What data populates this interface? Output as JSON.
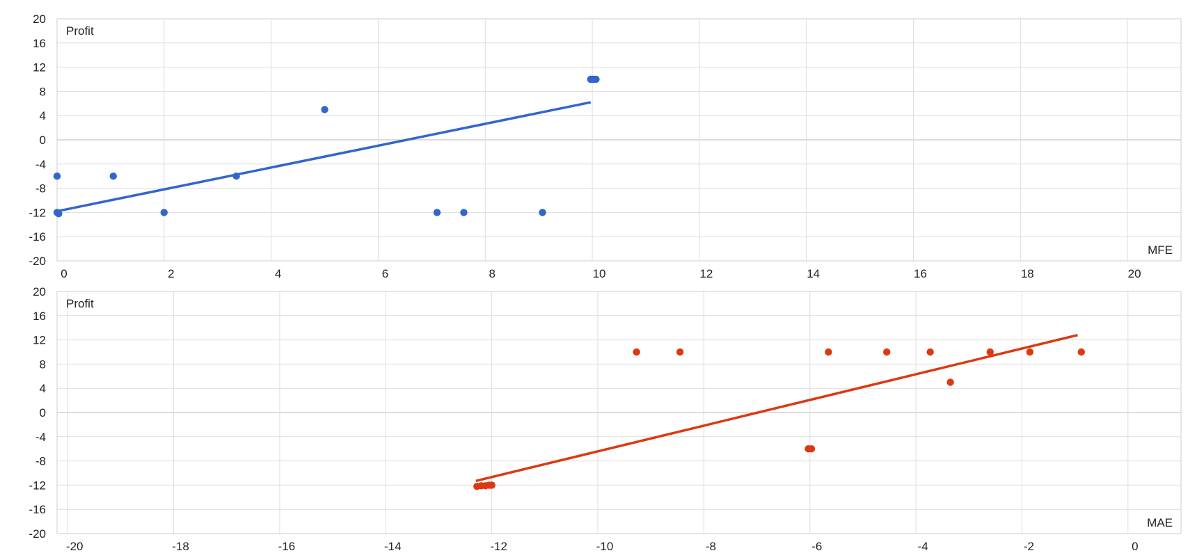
{
  "chart_data": [
    {
      "type": "scatter",
      "title": "",
      "xlabel": "MFE",
      "ylabel": "Profit",
      "xlim": [
        0,
        21
      ],
      "ylim": [
        -20,
        20
      ],
      "x_ticks": [
        0,
        2,
        4,
        6,
        8,
        10,
        12,
        14,
        16,
        18,
        20
      ],
      "y_ticks": [
        20,
        16,
        12,
        8,
        4,
        0,
        -4,
        -8,
        -12,
        -16,
        -20
      ],
      "grid": true,
      "color": "#3366cc",
      "points": [
        {
          "x": 0.0,
          "y": -6
        },
        {
          "x": 0.0,
          "y": -12
        },
        {
          "x": 0.03,
          "y": -12.2
        },
        {
          "x": 1.05,
          "y": -6
        },
        {
          "x": 2.0,
          "y": -12
        },
        {
          "x": 3.35,
          "y": -6
        },
        {
          "x": 5.0,
          "y": 5
        },
        {
          "x": 7.1,
          "y": -12
        },
        {
          "x": 7.6,
          "y": -12
        },
        {
          "x": 9.07,
          "y": -12
        },
        {
          "x": 9.97,
          "y": 10
        },
        {
          "x": 10.0,
          "y": 10
        },
        {
          "x": 10.03,
          "y": 10
        },
        {
          "x": 10.07,
          "y": 10
        }
      ],
      "trendline": {
        "x": [
          0,
          9.97
        ],
        "y": [
          -11.8,
          6.2
        ]
      }
    },
    {
      "type": "scatter",
      "title": "",
      "xlabel": "MAE",
      "ylabel": "Profit",
      "xlim": [
        -20.2,
        1
      ],
      "ylim": [
        -20,
        20
      ],
      "x_ticks": [
        -20,
        -18,
        -16,
        -14,
        -12,
        -10,
        -8,
        -6,
        -4,
        -2,
        0
      ],
      "y_ticks": [
        20,
        16,
        12,
        8,
        4,
        0,
        -4,
        -8,
        -12,
        -16,
        -20
      ],
      "grid": true,
      "color": "#dc3912",
      "points": [
        {
          "x": -12.28,
          "y": -12.2
        },
        {
          "x": -12.2,
          "y": -12.1
        },
        {
          "x": -12.12,
          "y": -12.1
        },
        {
          "x": -12.05,
          "y": -12
        },
        {
          "x": -12.0,
          "y": -12
        },
        {
          "x": -9.27,
          "y": 10
        },
        {
          "x": -8.45,
          "y": 10
        },
        {
          "x": -6.03,
          "y": -6
        },
        {
          "x": -5.97,
          "y": -6
        },
        {
          "x": -5.65,
          "y": 10
        },
        {
          "x": -4.55,
          "y": 10
        },
        {
          "x": -3.73,
          "y": 10
        },
        {
          "x": -3.35,
          "y": 5
        },
        {
          "x": -2.6,
          "y": 10
        },
        {
          "x": -1.85,
          "y": 10
        },
        {
          "x": -0.88,
          "y": 10
        }
      ],
      "trendline": {
        "x": [
          -12.3,
          -0.95
        ],
        "y": [
          -11.3,
          12.8
        ]
      }
    }
  ]
}
